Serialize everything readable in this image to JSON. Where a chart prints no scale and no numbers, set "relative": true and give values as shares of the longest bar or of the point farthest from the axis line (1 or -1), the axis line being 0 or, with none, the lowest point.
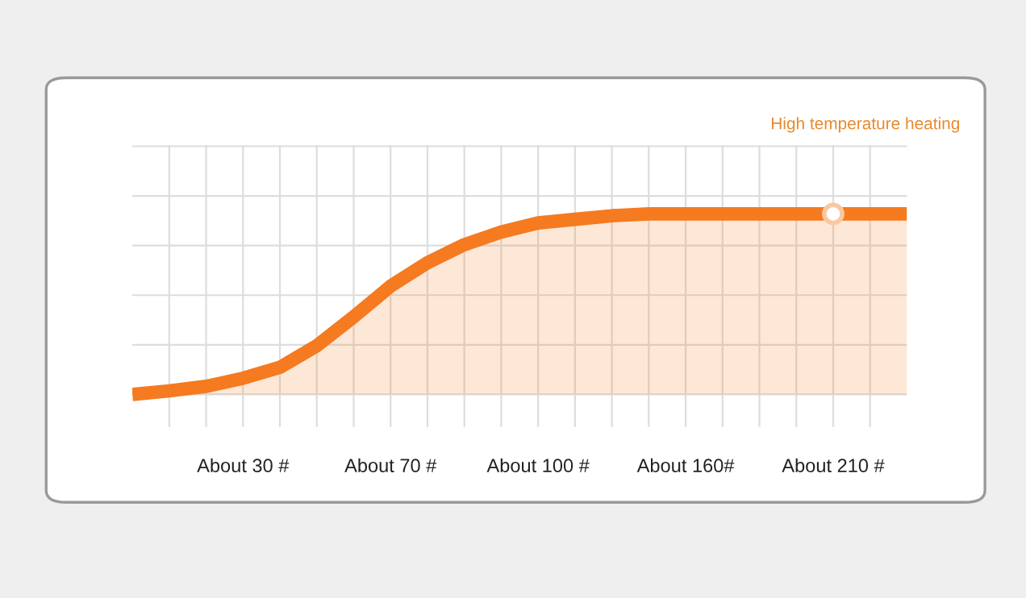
{
  "chart_data": {
    "type": "area",
    "relative": true,
    "grid": true,
    "tick_labels": "x",
    "categories": [
      null,
      null,
      null,
      "About 30 #",
      null,
      null,
      null,
      "About 70 #",
      null,
      null,
      null,
      "About 100 #",
      null,
      null,
      null,
      "About 160#",
      null,
      null,
      null,
      "About 210 #",
      null,
      null
    ],
    "series": [
      {
        "color": "#f57a20",
        "values": [
          0,
          0.02,
          0.045,
          0.09,
          0.15,
          0.27,
          0.43,
          0.6,
          0.73,
          0.83,
          0.9,
          0.95,
          0.97,
          0.99,
          1,
          1,
          1,
          1,
          1,
          1,
          1,
          1
        ]
      }
    ],
    "annotations": [
      "High temperature heating"
    ]
  }
}
